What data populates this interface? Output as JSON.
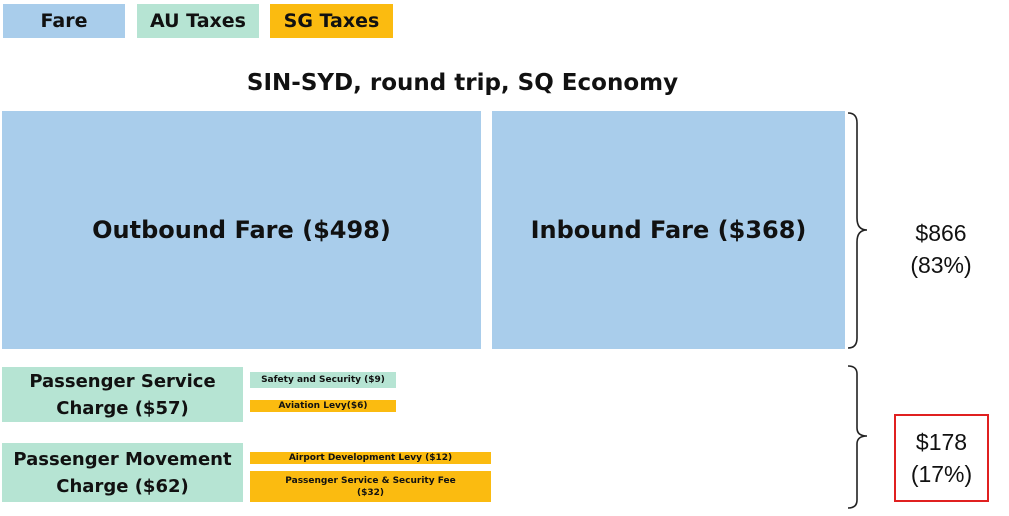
{
  "legend": {
    "fare": {
      "label": "Fare",
      "color": "#a9cdeb"
    },
    "au_taxes": {
      "label": "AU Taxes",
      "color": "#b6e4d3"
    },
    "sg_taxes": {
      "label": "SG Taxes",
      "color": "#fbbb10"
    }
  },
  "title": "SIN-SYD, round trip, SQ Economy",
  "fares": {
    "outbound": "Outbound Fare ($498)",
    "inbound": "Inbound Fare ($368)",
    "total_amount": "$866",
    "total_percent": "(83%)"
  },
  "taxes": {
    "passenger_service_line1": "Passenger Service",
    "passenger_service_line2": "Charge ($57)",
    "safety_security": "Safety and Security  ($9)",
    "aviation_levy": "Aviation Levy($6)",
    "passenger_movement_line1": "Passenger Movement",
    "passenger_movement_line2": "Charge ($62)",
    "airport_development": "Airport Development  Levy ($12)",
    "psc_security_fee_line1": "Passenger Service & Security Fee",
    "psc_security_fee_line2": "($32)",
    "total_amount": "$178",
    "total_percent": "(17%)"
  }
}
